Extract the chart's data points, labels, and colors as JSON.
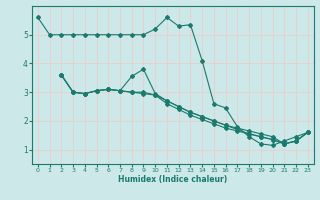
{
  "xlabel": "Humidex (Indice chaleur)",
  "background_color": "#cce8e8",
  "grid_color": "#e8d0d0",
  "line_color": "#1a7a6e",
  "tick_color": "#1a7a6e",
  "xlim": [
    -0.5,
    23.5
  ],
  "ylim": [
    0.5,
    6.0
  ],
  "yticks": [
    1,
    2,
    3,
    4,
    5
  ],
  "xticks": [
    0,
    1,
    2,
    3,
    4,
    5,
    6,
    7,
    8,
    9,
    10,
    11,
    12,
    13,
    14,
    15,
    16,
    17,
    18,
    19,
    20,
    21,
    22,
    23
  ],
  "lines": [
    {
      "x": [
        0,
        1,
        2,
        3,
        4,
        5,
        6,
        7,
        8,
        9,
        10,
        11,
        12,
        13,
        14,
        15,
        16,
        17,
        18,
        19,
        20,
        21,
        22,
        23
      ],
      "y": [
        5.6,
        5.0,
        5.0,
        5.0,
        5.0,
        5.0,
        5.0,
        5.0,
        5.0,
        5.0,
        5.2,
        5.6,
        5.3,
        5.35,
        4.1,
        2.6,
        2.45,
        1.8,
        1.45,
        1.2,
        1.15,
        1.3,
        1.45,
        1.6
      ]
    },
    {
      "x": [
        2,
        3,
        4,
        5,
        6,
        7,
        8,
        9,
        10,
        11,
        12,
        13,
        14,
        15,
        16,
        17,
        18,
        19,
        20,
        21,
        22,
        23
      ],
      "y": [
        3.6,
        3.0,
        2.95,
        3.05,
        3.1,
        3.05,
        3.0,
        3.0,
        2.9,
        2.7,
        2.5,
        2.3,
        2.15,
        2.0,
        1.85,
        1.7,
        1.55,
        1.45,
        1.35,
        1.2,
        1.3,
        1.6
      ]
    },
    {
      "x": [
        2,
        3,
        4,
        5,
        6,
        7,
        8,
        9,
        10,
        11,
        12,
        13,
        14,
        15,
        16,
        17,
        18,
        19,
        20,
        21,
        22,
        23
      ],
      "y": [
        3.6,
        3.0,
        2.95,
        3.05,
        3.1,
        3.05,
        3.55,
        3.8,
        2.95,
        2.7,
        2.5,
        2.3,
        2.15,
        2.0,
        1.85,
        1.75,
        1.65,
        1.55,
        1.45,
        1.2,
        1.3,
        1.6
      ]
    },
    {
      "x": [
        2,
        3,
        4,
        5,
        6,
        7,
        8,
        9,
        10,
        11,
        12,
        13,
        14,
        15,
        16,
        17,
        18,
        19,
        20,
        21,
        22,
        23
      ],
      "y": [
        3.6,
        3.0,
        2.95,
        3.05,
        3.1,
        3.05,
        3.0,
        2.95,
        2.9,
        2.6,
        2.4,
        2.2,
        2.05,
        1.9,
        1.75,
        1.65,
        1.55,
        1.45,
        1.35,
        1.2,
        1.3,
        1.6
      ]
    }
  ]
}
